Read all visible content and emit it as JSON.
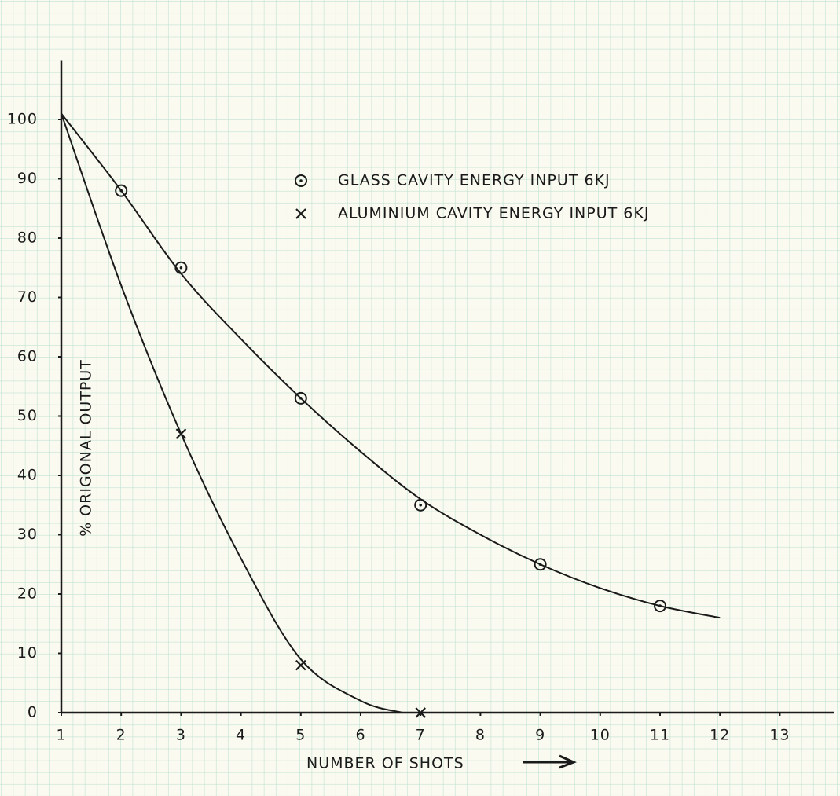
{
  "chart_data": {
    "type": "line",
    "x_label": "NUMBER OF SHOTS",
    "y_label": "% ORIGONAL OUTPUT",
    "xlim": [
      1,
      13.9
    ],
    "xticks": [
      1,
      2,
      3,
      4,
      5,
      6,
      7,
      8,
      9,
      10,
      11,
      12,
      13
    ],
    "ylim": [
      0,
      110
    ],
    "yticks": [
      0,
      10,
      20,
      30,
      40,
      50,
      60,
      70,
      80,
      90,
      100
    ],
    "color": "#1a1a1a",
    "series": [
      {
        "name": "GLASS CAVITY ENERGY INPUT 6KJ",
        "marker": "circle",
        "x": [
          2,
          3,
          5,
          7,
          9,
          11
        ],
        "values": [
          88,
          75,
          53,
          35,
          25,
          18
        ],
        "curve_x": [
          1,
          2,
          3,
          4,
          5,
          6,
          7,
          8,
          9,
          10,
          11,
          12
        ],
        "curve_y": [
          101,
          88,
          74,
          63,
          53,
          44,
          36,
          30,
          25,
          21,
          18,
          16
        ]
      },
      {
        "name": "ALUMINIUM CAVITY ENERGY INPUT 6KJ",
        "marker": "x",
        "x": [
          3,
          5,
          7
        ],
        "values": [
          47,
          8,
          0
        ],
        "curve_x": [
          1,
          2,
          3,
          4,
          5,
          6,
          6.7
        ],
        "curve_y": [
          101,
          72,
          47,
          26,
          9,
          2,
          0
        ]
      }
    ]
  }
}
